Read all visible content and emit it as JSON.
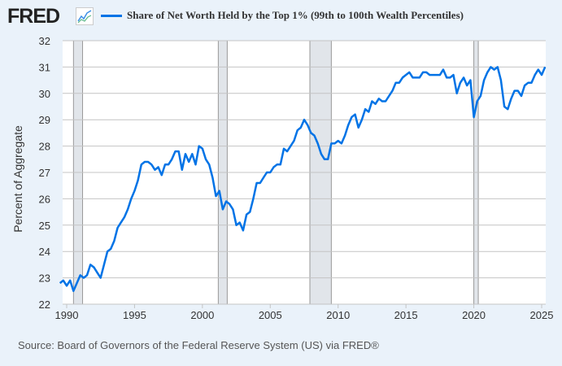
{
  "header": {
    "logo": "FRED",
    "logo_icon": "chart-line-icon"
  },
  "source": "Source: Board of Governors of the Federal Reserve System (US) via FRED®",
  "chart_data": {
    "type": "line",
    "title": "",
    "legend": "top",
    "xlabel": "",
    "ylabel": "Percent of Aggregate",
    "ylim": [
      22,
      32
    ],
    "xlim": [
      1989.7,
      2025.3
    ],
    "yticks": [
      22,
      23,
      24,
      25,
      26,
      27,
      28,
      29,
      30,
      31,
      32
    ],
    "xticks": [
      1990,
      1995,
      2000,
      2005,
      2010,
      2015,
      2020,
      2025
    ],
    "grid": "horizontal",
    "recessions": [
      [
        1990.5,
        1991.17
      ],
      [
        2001.17,
        2001.83
      ],
      [
        2007.92,
        2009.5
      ],
      [
        2020.0,
        2020.33
      ]
    ],
    "series": [
      {
        "name": "Share of Net Worth Held by the Top 1% (99th to 100th Wealth Percentiles)",
        "color": "#0073e6",
        "start": "1989-Q3",
        "frequency": "quarterly",
        "values": [
          22.8,
          22.9,
          22.7,
          22.9,
          22.5,
          22.8,
          23.1,
          23.0,
          23.1,
          23.5,
          23.4,
          23.2,
          23.0,
          23.5,
          24.0,
          24.1,
          24.4,
          24.9,
          25.1,
          25.3,
          25.6,
          26.0,
          26.3,
          26.7,
          27.3,
          27.4,
          27.4,
          27.3,
          27.1,
          27.2,
          26.9,
          27.3,
          27.3,
          27.5,
          27.8,
          27.8,
          27.1,
          27.7,
          27.4,
          27.7,
          27.3,
          28.0,
          27.9,
          27.5,
          27.3,
          26.8,
          26.1,
          26.3,
          25.6,
          25.9,
          25.8,
          25.6,
          25.0,
          25.1,
          24.8,
          25.4,
          25.5,
          26.0,
          26.6,
          26.6,
          26.8,
          27.0,
          27.0,
          27.2,
          27.3,
          27.3,
          27.9,
          27.8,
          28.0,
          28.2,
          28.6,
          28.7,
          29.0,
          28.8,
          28.5,
          28.4,
          28.1,
          27.7,
          27.5,
          27.5,
          28.1,
          28.1,
          28.2,
          28.1,
          28.4,
          28.8,
          29.1,
          29.2,
          28.7,
          29.0,
          29.4,
          29.3,
          29.7,
          29.6,
          29.8,
          29.7,
          29.7,
          29.9,
          30.1,
          30.4,
          30.4,
          30.6,
          30.7,
          30.8,
          30.6,
          30.6,
          30.6,
          30.8,
          30.8,
          30.7,
          30.7,
          30.7,
          30.7,
          30.9,
          30.6,
          30.6,
          30.7,
          30.0,
          30.4,
          30.6,
          30.3,
          30.5,
          29.1,
          29.7,
          29.9,
          30.5,
          30.8,
          31.0,
          30.9,
          31.0,
          30.5,
          29.5,
          29.4,
          29.8,
          30.1,
          30.1,
          29.9,
          30.3,
          30.4,
          30.4,
          30.7,
          30.9,
          30.7,
          31.0
        ]
      }
    ]
  }
}
